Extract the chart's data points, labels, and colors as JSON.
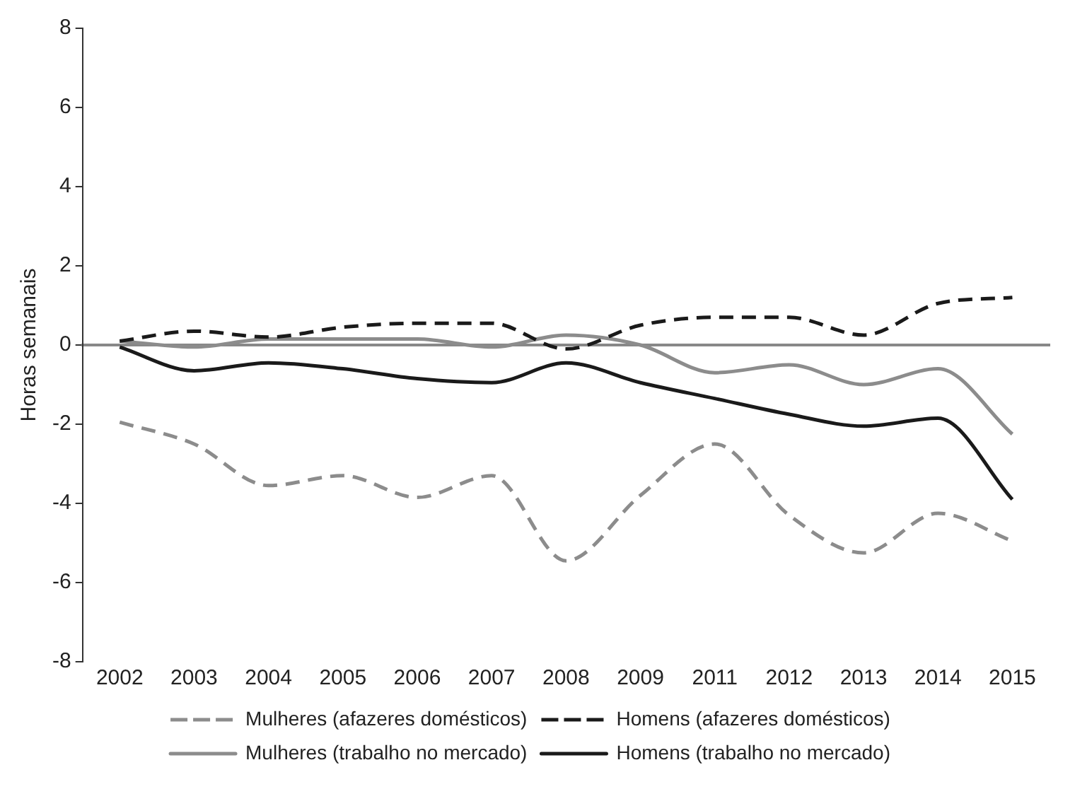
{
  "chart_data": {
    "type": "line",
    "ylabel": "Horas semanais",
    "categories": [
      "2002",
      "2003",
      "2004",
      "2005",
      "2006",
      "2007",
      "2008",
      "2009",
      "2011",
      "2012",
      "2013",
      "2014",
      "2015"
    ],
    "series": [
      {
        "name": "Mulheres (afazeres domésticos)",
        "color": "#8c8c8c",
        "line_style": "dashed",
        "values": [
          -1.95,
          -2.5,
          -3.55,
          -3.3,
          -3.85,
          -3.3,
          -5.45,
          -3.8,
          -2.5,
          -4.3,
          -5.25,
          -4.25,
          -4.95
        ]
      },
      {
        "name": "Homens (afazeres domésticos)",
        "color": "#1a1a1a",
        "line_style": "dashed",
        "values": [
          0.1,
          0.35,
          0.2,
          0.45,
          0.55,
          0.55,
          -0.1,
          0.5,
          0.7,
          0.7,
          0.25,
          1.05,
          1.2
        ]
      },
      {
        "name": "Mulheres (trabalho no mercado)",
        "color": "#8c8c8c",
        "line_style": "solid",
        "values": [
          0.1,
          -0.05,
          0.15,
          0.15,
          0.15,
          -0.05,
          0.25,
          0.0,
          -0.7,
          -0.5,
          -1.0,
          -0.6,
          -2.25
        ]
      },
      {
        "name": "Homens (trabalho no mercado)",
        "color": "#1a1a1a",
        "line_style": "solid",
        "values": [
          -0.05,
          -0.65,
          -0.45,
          -0.6,
          -0.85,
          -0.95,
          -0.45,
          -0.95,
          -1.35,
          -1.75,
          -2.05,
          -1.85,
          -3.9
        ]
      }
    ],
    "ylim": [
      -8,
      8
    ],
    "yticks": [
      -8,
      -6,
      -4,
      -2,
      0,
      2,
      4,
      6,
      8
    ],
    "legend": "bottom",
    "marker": "none"
  }
}
